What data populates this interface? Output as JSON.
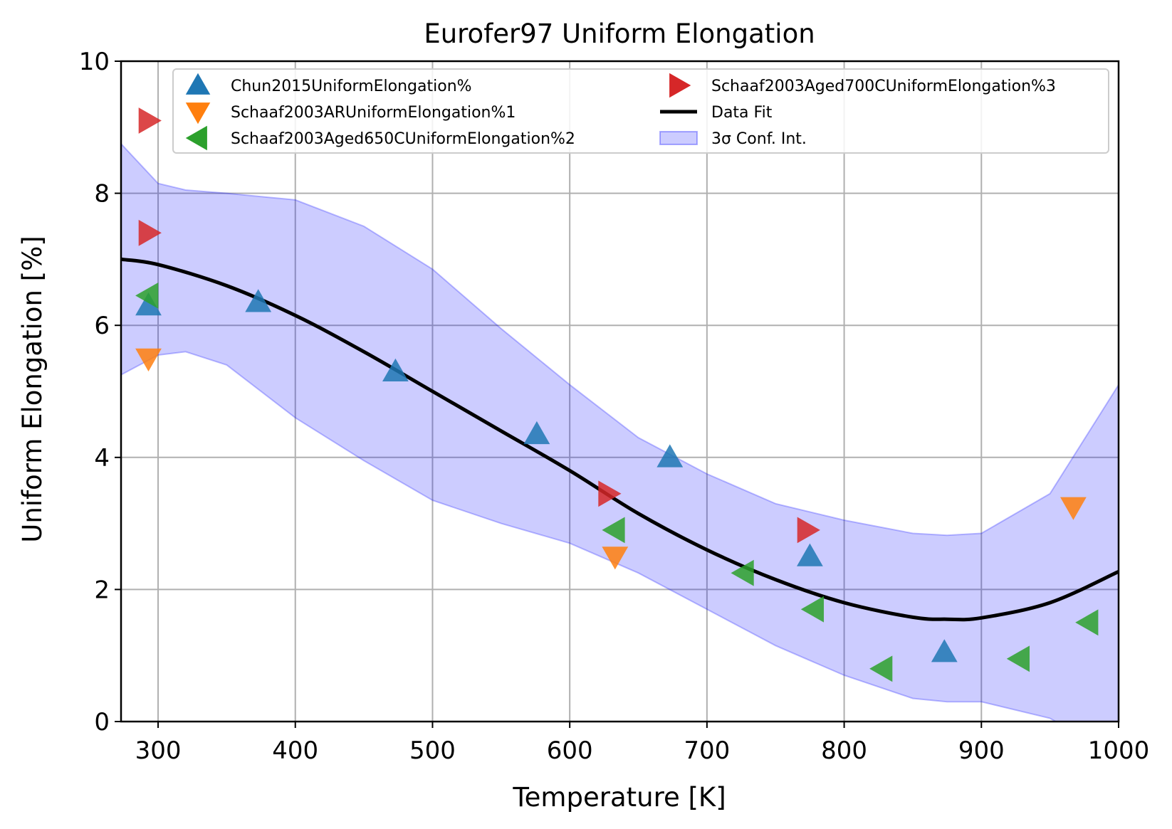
{
  "chart_data": {
    "type": "scatter",
    "title": "Eurofer97 Uniform Elongation",
    "xlabel": "Temperature [K]",
    "ylabel": "Uniform Elongation [%]",
    "xlim": [
      273,
      1000
    ],
    "ylim": [
      0,
      10
    ],
    "xticks": [
      300,
      400,
      500,
      600,
      700,
      800,
      900,
      1000
    ],
    "yticks": [
      0,
      2,
      4,
      6,
      8,
      10
    ],
    "grid": true,
    "legend_position": "top",
    "legend_columns": 2,
    "series": [
      {
        "name": "Chun2015UniformElongation%",
        "marker": "triangle-up",
        "color": "#1f77b4",
        "points": [
          [
            293,
            6.3
          ],
          [
            373,
            6.35
          ],
          [
            473,
            5.3
          ],
          [
            576,
            4.35
          ],
          [
            673,
            4.0
          ],
          [
            775,
            2.5
          ],
          [
            873,
            1.05
          ]
        ]
      },
      {
        "name": "Schaaf2003ARUniformElongation%1",
        "marker": "triangle-down",
        "color": "#ff7f0e",
        "points": [
          [
            293,
            5.5
          ],
          [
            633,
            2.5
          ],
          [
            967,
            3.25
          ]
        ]
      },
      {
        "name": "Schaaf2003Aged650CUniformElongation%2",
        "marker": "triangle-left",
        "color": "#2ca02c",
        "points": [
          [
            293,
            6.45
          ],
          [
            633,
            2.9
          ],
          [
            727,
            2.25
          ],
          [
            778,
            1.7
          ],
          [
            828,
            0.8
          ],
          [
            928,
            0.95
          ],
          [
            978,
            1.5
          ]
        ]
      },
      {
        "name": "Schaaf2003Aged700CUniformElongation%3",
        "marker": "triangle-right",
        "color": "#d62728",
        "points": [
          [
            293,
            9.1
          ],
          [
            293,
            7.4
          ],
          [
            628,
            3.45
          ],
          [
            773,
            2.9
          ]
        ]
      }
    ],
    "fit": {
      "name": "Data Fit",
      "color": "#000000",
      "x": [
        273,
        300,
        350,
        400,
        450,
        500,
        550,
        600,
        650,
        700,
        750,
        800,
        850,
        875,
        900,
        950,
        1000
      ],
      "y": [
        7.0,
        6.92,
        6.6,
        6.15,
        5.6,
        5.0,
        4.4,
        3.8,
        3.15,
        2.6,
        2.15,
        1.8,
        1.58,
        1.55,
        1.57,
        1.8,
        2.27
      ]
    },
    "confidence_band": {
      "name": "3σ Conf. Int.",
      "color": "#0000ff",
      "x": [
        273,
        300,
        320,
        350,
        400,
        450,
        500,
        550,
        600,
        650,
        700,
        750,
        800,
        850,
        875,
        900,
        950,
        1000
      ],
      "lower": [
        5.25,
        5.55,
        5.6,
        5.4,
        4.6,
        3.95,
        3.35,
        3.0,
        2.7,
        2.25,
        1.7,
        1.15,
        0.7,
        0.35,
        0.3,
        0.3,
        0.05,
        -0.55
      ],
      "upper": [
        8.75,
        8.15,
        8.05,
        8.0,
        7.9,
        7.5,
        6.85,
        5.95,
        5.1,
        4.3,
        3.75,
        3.3,
        3.05,
        2.85,
        2.82,
        2.85,
        3.45,
        5.1
      ]
    }
  }
}
